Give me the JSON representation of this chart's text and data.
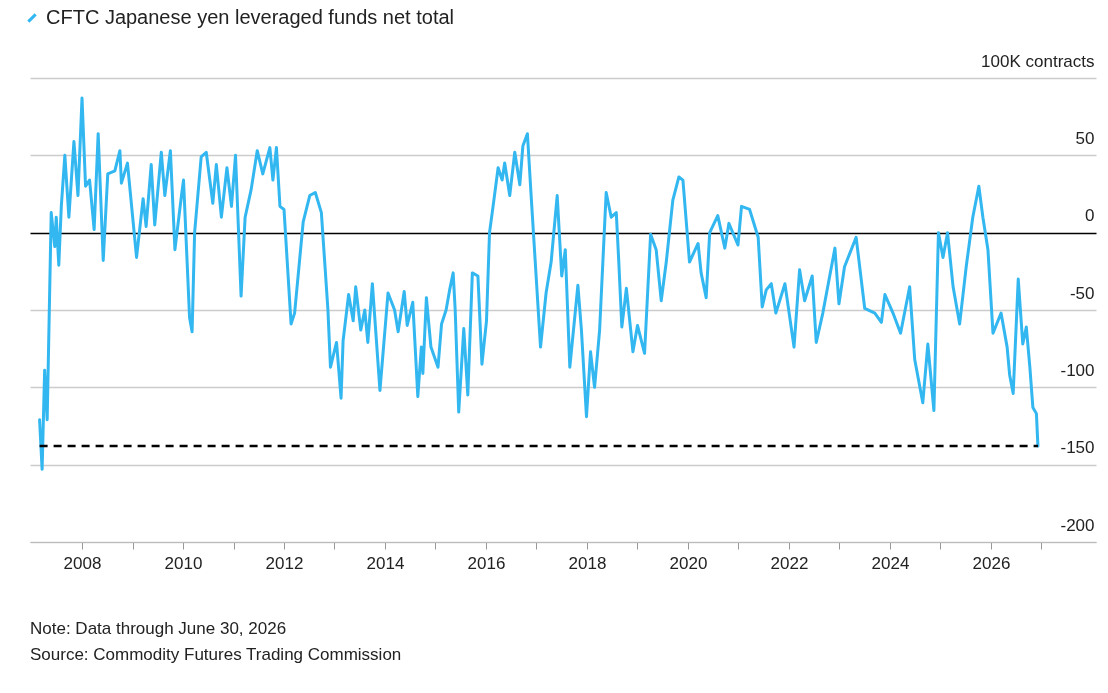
{
  "chart_data": {
    "type": "line",
    "legend": "top left",
    "grid": "y",
    "annotations": [
      "Note: Data through June 30, 2026",
      "Source: Commodity Futures Trading Commission"
    ],
    "xlim": [
      2006.97,
      2028.08
    ],
    "xticks": [
      2008,
      {
        "value": 2009,
        "label": null
      },
      2010,
      {
        "value": 2011,
        "label": null
      },
      2012,
      {
        "value": 2013,
        "label": null
      },
      2014,
      {
        "value": 2015,
        "label": null
      },
      2016,
      {
        "value": 2017,
        "label": null
      },
      2018,
      {
        "value": 2019,
        "label": null
      },
      2020,
      {
        "value": 2021,
        "label": null
      },
      2022,
      {
        "value": 2023,
        "label": null
      },
      2024,
      {
        "value": 2025,
        "label": null
      },
      2026,
      {
        "value": 2027,
        "label": null
      }
    ],
    "ylim": [
      -200,
      100
    ],
    "yticks": [
      -200,
      -150,
      -100,
      -50,
      0,
      50,
      {
        "value": 100,
        "label": "100K contracts"
      }
    ],
    "ref_lines": [
      {
        "axis": "y",
        "value": -138,
        "color": "#000000",
        "line_style": "dashed"
      }
    ],
    "series": [
      {
        "name": "CFTC Japanese yen leveraged funds net total",
        "color": "#33b7f0",
        "x": [
          2007.16,
          2007.21,
          2007.26,
          2007.31,
          2007.39,
          2007.46,
          2007.49,
          2007.54,
          2007.59,
          2007.66,
          2007.74,
          2007.84,
          2007.92,
          2008.0,
          2008.07,
          2008.15,
          2008.24,
          2008.32,
          2008.42,
          2008.51,
          2008.65,
          2008.75,
          2008.78,
          2008.9,
          2009.08,
          2009.21,
          2009.27,
          2009.37,
          2009.44,
          2009.57,
          2009.64,
          2009.75,
          2009.84,
          2009.97,
          2010.01,
          2010.13,
          2010.18,
          2010.23,
          2010.36,
          2010.46,
          2010.59,
          2010.66,
          2010.76,
          2010.87,
          2010.96,
          2011.04,
          2011.15,
          2011.23,
          2011.35,
          2011.47,
          2011.58,
          2011.72,
          2011.78,
          2011.85,
          2011.92,
          2012.0,
          2012.14,
          2012.21,
          2012.38,
          2012.51,
          2012.62,
          2012.74,
          2012.87,
          2012.92,
          2013.04,
          2013.13,
          2013.17,
          2013.28,
          2013.37,
          2013.42,
          2013.52,
          2013.6,
          2013.66,
          2013.75,
          2013.9,
          2014.06,
          2014.19,
          2014.26,
          2014.38,
          2014.44,
          2014.55,
          2014.65,
          2014.72,
          2014.75,
          2014.82,
          2014.91,
          2015.05,
          2015.12,
          2015.21,
          2015.28,
          2015.35,
          2015.39,
          2015.46,
          2015.56,
          2015.64,
          2015.73,
          2015.84,
          2015.92,
          2016.01,
          2016.07,
          2016.14,
          2016.24,
          2016.32,
          2016.37,
          2016.47,
          2016.57,
          2016.67,
          2016.73,
          2016.82,
          2016.89,
          2017.08,
          2017.19,
          2017.29,
          2017.41,
          2017.5,
          2017.57,
          2017.66,
          2017.82,
          2017.89,
          2017.99,
          2018.07,
          2018.15,
          2018.25,
          2018.38,
          2018.48,
          2018.58,
          2018.63,
          2018.69,
          2018.78,
          2018.91,
          2019.0,
          2019.14,
          2019.26,
          2019.37,
          2019.47,
          2019.57,
          2019.7,
          2019.82,
          2019.9,
          2020.03,
          2020.2,
          2020.26,
          2020.36,
          2020.43,
          2020.59,
          2020.73,
          2020.81,
          2020.99,
          2021.06,
          2021.22,
          2021.39,
          2021.47,
          2021.55,
          2021.65,
          2021.74,
          2021.92,
          2022.1,
          2022.21,
          2022.31,
          2022.46,
          2022.54,
          2022.67,
          2022.91,
          2022.99,
          2023.1,
          2023.33,
          2023.5,
          2023.7,
          2023.83,
          2023.9,
          2024.06,
          2024.21,
          2024.39,
          2024.49,
          2024.65,
          2024.75,
          2024.87,
          2024.96,
          2025.05,
          2025.14,
          2025.25,
          2025.38,
          2025.51,
          2025.64,
          2025.76,
          2025.84,
          2025.94,
          2026.04,
          2026.2,
          2026.32,
          2026.37,
          2026.44,
          2026.54,
          2026.63,
          2026.7,
          2026.77,
          2026.83,
          2026.9,
          2026.93
        ],
        "values": [
          -121,
          -153,
          -89,
          -121,
          13,
          -9,
          10,
          -21,
          17,
          50,
          10,
          59,
          24,
          87,
          30,
          34,
          2,
          64,
          -18,
          38,
          40,
          53,
          32,
          45,
          -16,
          22,
          4,
          44,
          5,
          52,
          24,
          53,
          -11,
          24,
          34,
          -55,
          -64,
          0,
          49,
          52,
          19,
          44,
          10,
          42,
          17,
          50,
          -41,
          10,
          28,
          53,
          38,
          55,
          34,
          55,
          17,
          15,
          -59,
          -52,
          7,
          24,
          26,
          13,
          -50,
          -87,
          -71,
          -107,
          -70,
          -40,
          -57,
          -35,
          -63,
          -50,
          -71,
          -33,
          -102,
          -39,
          -50,
          -64,
          -38,
          -60,
          -45,
          -106,
          -74,
          -91,
          -42,
          -74,
          -87,
          -59,
          -50,
          -37,
          -26,
          -50,
          -116,
          -62,
          -105,
          -26,
          -28,
          -85,
          -57,
          0,
          17,
          42,
          34,
          45,
          24,
          52,
          31,
          56,
          64,
          26,
          -74,
          -39,
          -19,
          24,
          -28,
          -11,
          -87,
          -34,
          -63,
          -119,
          -77,
          -100,
          -63,
          26,
          10,
          13,
          -19,
          -61,
          -36,
          -77,
          -60,
          -78,
          -1,
          -11,
          -44,
          -19,
          21,
          36,
          34,
          -19,
          -7,
          -26,
          -42,
          0,
          11,
          -10,
          6,
          -8,
          17,
          15,
          -3,
          -48,
          -37,
          -33,
          -52,
          -33,
          -74,
          -24,
          -44,
          -28,
          -71,
          -52,
          -10,
          -46,
          -22,
          -3,
          -49,
          -52,
          -58,
          -40,
          -52,
          -65,
          -35,
          -82,
          -110,
          -72,
          -115,
          0,
          -16,
          0,
          -35,
          -59,
          -22,
          10,
          30,
          10,
          -11,
          -65,
          -52,
          -74,
          -92,
          -104,
          -30,
          -72,
          -61,
          -87,
          -113,
          -117,
          -138
        ]
      }
    ]
  }
}
